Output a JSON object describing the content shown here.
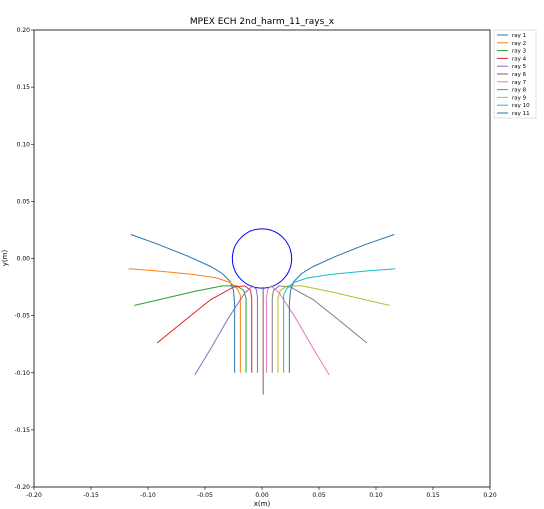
{
  "chart_data": {
    "type": "line",
    "title": "MPEX ECH  2nd_harm_11_rays_x",
    "xlabel": "x(m)",
    "ylabel": "y(m)",
    "xlim": [
      -0.2,
      0.2
    ],
    "ylim": [
      -0.2,
      0.2
    ],
    "xticks": [
      "-0.20",
      "-0.15",
      "-0.10",
      "-0.05",
      "0.00",
      "0.05",
      "0.10",
      "0.15",
      "0.20"
    ],
    "yticks": [
      "0.20",
      "0.15",
      "0.10",
      "0.05",
      "0.00",
      "-0.05",
      "-0.10",
      "-0.15",
      "-0.20"
    ],
    "grid": false,
    "legend_placement": "outside-top-right",
    "circle": {
      "center": [
        0.0,
        0.0
      ],
      "radius": 0.026,
      "color": "#0000ff"
    },
    "series": [
      {
        "name": "ray 1",
        "color": "#1f77b4",
        "points": [
          [
            -0.115,
            0.021
          ],
          [
            -0.09,
            0.012
          ],
          [
            -0.065,
            0.002
          ],
          [
            -0.045,
            -0.007
          ],
          [
            -0.035,
            -0.013
          ],
          [
            -0.028,
            -0.02
          ],
          [
            -0.025,
            -0.028
          ],
          [
            -0.024,
            -0.04
          ],
          [
            -0.024,
            -0.1
          ]
        ]
      },
      {
        "name": "ray 2",
        "color": "#ff7f0e",
        "points": [
          [
            -0.117,
            -0.009
          ],
          [
            -0.09,
            -0.011
          ],
          [
            -0.06,
            -0.014
          ],
          [
            -0.04,
            -0.017
          ],
          [
            -0.028,
            -0.021
          ],
          [
            -0.022,
            -0.026
          ],
          [
            -0.019,
            -0.032
          ],
          [
            -0.019,
            -0.045
          ],
          [
            -0.019,
            -0.1
          ]
        ]
      },
      {
        "name": "ray 3",
        "color": "#2ca02c",
        "points": [
          [
            -0.112,
            -0.041
          ],
          [
            -0.09,
            -0.036
          ],
          [
            -0.06,
            -0.029
          ],
          [
            -0.035,
            -0.024
          ],
          [
            -0.022,
            -0.024
          ],
          [
            -0.016,
            -0.028
          ],
          [
            -0.014,
            -0.035
          ],
          [
            -0.014,
            -0.05
          ],
          [
            -0.014,
            -0.1
          ]
        ]
      },
      {
        "name": "ray 4",
        "color": "#d62728",
        "points": [
          [
            -0.092,
            -0.074
          ],
          [
            -0.07,
            -0.056
          ],
          [
            -0.045,
            -0.036
          ],
          [
            -0.025,
            -0.025
          ],
          [
            -0.015,
            -0.024
          ],
          [
            -0.01,
            -0.028
          ],
          [
            -0.009,
            -0.035
          ],
          [
            -0.009,
            -0.05
          ],
          [
            -0.009,
            -0.1
          ]
        ]
      },
      {
        "name": "ray 5",
        "color": "#9467bd",
        "points": [
          [
            -0.059,
            -0.102
          ],
          [
            -0.045,
            -0.079
          ],
          [
            -0.03,
            -0.053
          ],
          [
            -0.015,
            -0.03
          ],
          [
            -0.008,
            -0.024
          ],
          [
            -0.005,
            -0.027
          ],
          [
            -0.004,
            -0.034
          ],
          [
            -0.004,
            -0.05
          ],
          [
            -0.004,
            -0.1
          ]
        ]
      },
      {
        "name": "ray 6",
        "color": "#8c564b",
        "points": [
          [
            0.001,
            -0.025
          ],
          [
            0.001,
            -0.05
          ],
          [
            0.001,
            -0.1
          ],
          [
            0.001,
            -0.119
          ]
        ]
      },
      {
        "name": "ray 7",
        "color": "#e377c2",
        "points": [
          [
            0.059,
            -0.102
          ],
          [
            0.045,
            -0.079
          ],
          [
            0.03,
            -0.053
          ],
          [
            0.015,
            -0.03
          ],
          [
            0.008,
            -0.024
          ],
          [
            0.005,
            -0.027
          ],
          [
            0.004,
            -0.034
          ],
          [
            0.004,
            -0.05
          ],
          [
            0.004,
            -0.1
          ]
        ]
      },
      {
        "name": "ray 8",
        "color": "#7f7f7f",
        "points": [
          [
            0.092,
            -0.074
          ],
          [
            0.07,
            -0.056
          ],
          [
            0.045,
            -0.036
          ],
          [
            0.025,
            -0.025
          ],
          [
            0.015,
            -0.024
          ],
          [
            0.01,
            -0.028
          ],
          [
            0.009,
            -0.035
          ],
          [
            0.009,
            -0.05
          ],
          [
            0.009,
            -0.1
          ]
        ]
      },
      {
        "name": "ray 9",
        "color": "#bcbd22",
        "points": [
          [
            0.112,
            -0.041
          ],
          [
            0.09,
            -0.036
          ],
          [
            0.06,
            -0.029
          ],
          [
            0.035,
            -0.024
          ],
          [
            0.022,
            -0.024
          ],
          [
            0.016,
            -0.028
          ],
          [
            0.014,
            -0.035
          ],
          [
            0.014,
            -0.05
          ],
          [
            0.014,
            -0.1
          ]
        ]
      },
      {
        "name": "ray 10",
        "color": "#17becf",
        "points": [
          [
            0.117,
            -0.009
          ],
          [
            0.09,
            -0.011
          ],
          [
            0.06,
            -0.014
          ],
          [
            0.04,
            -0.017
          ],
          [
            0.028,
            -0.021
          ],
          [
            0.022,
            -0.026
          ],
          [
            0.019,
            -0.032
          ],
          [
            0.019,
            -0.045
          ],
          [
            0.019,
            -0.1
          ]
        ]
      },
      {
        "name": "ray 11",
        "color": "#1f77b4",
        "points": [
          [
            0.116,
            0.021
          ],
          [
            0.09,
            0.012
          ],
          [
            0.065,
            0.002
          ],
          [
            0.045,
            -0.007
          ],
          [
            0.035,
            -0.013
          ],
          [
            0.028,
            -0.02
          ],
          [
            0.025,
            -0.028
          ],
          [
            0.024,
            -0.04
          ],
          [
            0.024,
            -0.1
          ]
        ]
      }
    ]
  }
}
